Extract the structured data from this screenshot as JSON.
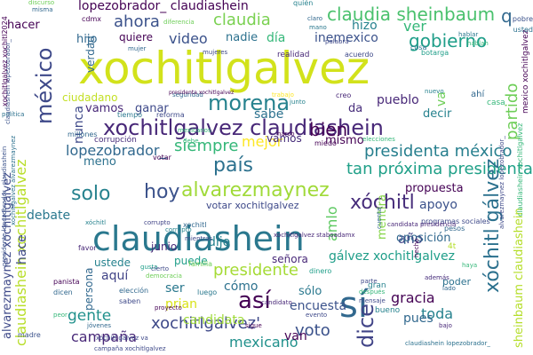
{
  "palette": {
    "background": "#ffffff",
    "colors": [
      "#440154",
      "#482878",
      "#3e4989",
      "#31688e",
      "#26828e",
      "#1f9e89",
      "#35b779",
      "#6ece58",
      "#b5de2b",
      "#fde725"
    ]
  },
  "words": [
    {
      "text": "xochitlgalvez",
      "color": "#d2e21b"
    },
    {
      "text": "claudiashein",
      "color": "#2a788e"
    },
    {
      "text": "sí",
      "color": "#31688e"
    },
    {
      "text": "xochitlgalvez claudiashein",
      "color": "#482878"
    },
    {
      "text": "méxico",
      "color": "#3e4989"
    },
    {
      "text": "morena",
      "color": "#26828e"
    },
    {
      "text": "así",
      "color": "#440154"
    },
    {
      "text": "hoy",
      "color": "#3b528b"
    },
    {
      "text": "alvarezmaynez",
      "color": "#a0da39"
    },
    {
      "text": "país",
      "color": "#2c718e"
    },
    {
      "text": "claudia sheinbaum",
      "color": "#4ac16d"
    },
    {
      "text": "solo",
      "color": "#26828e"
    },
    {
      "text": "claudia",
      "color": "#7ad151"
    },
    {
      "text": "gobierno",
      "color": "#1f9e89"
    },
    {
      "text": "xóchitl",
      "color": "#472d7b"
    },
    {
      "text": "xochitlgalvez'",
      "color": "#3e4989"
    },
    {
      "text": "presidente",
      "color": "#a5db36"
    },
    {
      "text": "ahora",
      "color": "#3b528b"
    },
    {
      "text": "bien",
      "color": "#440154"
    },
    {
      "text": "tan próxima presidenta",
      "color": "#1fa088"
    },
    {
      "text": "presidenta méxico",
      "color": "#277f8e"
    },
    {
      "text": "dice",
      "color": "#414487"
    },
    {
      "text": "voto",
      "color": "#3b528b"
    },
    {
      "text": "campaña",
      "color": "#482878"
    },
    {
      "text": "gente",
      "color": "#21918c"
    },
    {
      "text": "lopezobrador_ claudiashein",
      "color": "#440154"
    },
    {
      "text": "lopezobrador_",
      "color": "#31688e"
    },
    {
      "text": "mexicano",
      "color": "#21918c"
    },
    {
      "text": "claudiashein xochitlgalvez",
      "color": "#b8de29"
    },
    {
      "text": "xóchitl gálvez",
      "color": "#2c718e"
    },
    {
      "text": "partido",
      "color": "#6ece58"
    },
    {
      "text": "siempre",
      "color": "#35b779"
    },
    {
      "text": "mejor",
      "color": "#fde725"
    },
    {
      "text": "amlo",
      "color": "#5ec962"
    },
    {
      "text": "debate",
      "color": "#2a788e"
    },
    {
      "text": "video",
      "color": "#3b528b"
    },
    {
      "text": "sabe",
      "color": "#2c718e"
    },
    {
      "text": "pueblo",
      "color": "#482878"
    },
    {
      "text": "gracia",
      "color": "#440154"
    },
    {
      "text": "toda",
      "color": "#26828e"
    },
    {
      "text": "gálvez xochitlgalvez",
      "color": "#1f9e89"
    },
    {
      "text": "ver",
      "color": "#35b779"
    },
    {
      "text": "hacer",
      "color": "#440154"
    },
    {
      "text": "hace",
      "color": "#3e4989"
    },
    {
      "text": "aquí",
      "color": "#414487"
    },
    {
      "text": "ser",
      "color": "#2a788e"
    },
    {
      "text": "prian",
      "color": "#d8e219"
    },
    {
      "text": "hijo",
      "color": "#31688e"
    },
    {
      "text": "quiere",
      "color": "#440154"
    },
    {
      "text": "nadie",
      "color": "#2c718e"
    },
    {
      "text": "día",
      "color": "#35b779"
    },
    {
      "text": "inemexico",
      "color": "#3b528b"
    },
    {
      "text": "hizo",
      "color": "#26828e"
    },
    {
      "text": "verdad",
      "color": "#31688e"
    },
    {
      "text": "vamos",
      "color": "#482878"
    },
    {
      "text": "ganar",
      "color": "#3e4989"
    },
    {
      "text": "ciudadano",
      "color": "#c2df23"
    },
    {
      "text": "nunca",
      "color": "#3e4989"
    },
    {
      "text": "va",
      "color": "#6ece58"
    },
    {
      "text": "decir",
      "color": "#26828e"
    },
    {
      "text": "mismo",
      "color": "#440154"
    },
    {
      "text": "da",
      "color": "#472d7b"
    },
    {
      "text": "q",
      "color": "#31688e"
    },
    {
      "text": "año",
      "color": "#414487"
    },
    {
      "text": "apoyo",
      "color": "#3b528b"
    },
    {
      "text": "propuesta",
      "color": "#440154"
    },
    {
      "text": "oposición",
      "color": "#31688e"
    },
    {
      "text": "mentira",
      "color": "#86d549"
    },
    {
      "text": "meno",
      "color": "#2c718e"
    },
    {
      "text": "encuesta",
      "color": "#3b528b"
    },
    {
      "text": "pues",
      "color": "#31688e"
    },
    {
      "text": "cómo",
      "color": "#2c718e"
    },
    {
      "text": "candidata",
      "color": "#9fda3a"
    },
    {
      "text": "puede",
      "color": "#1f9e89"
    },
    {
      "text": "ustede",
      "color": "#26828e"
    },
    {
      "text": "persona",
      "color": "#31688e"
    },
    {
      "text": "junio",
      "color": "#482878"
    },
    {
      "text": "dijo",
      "color": "#26828e"
    },
    {
      "text": "van",
      "color": "#440154"
    },
    {
      "text": "votar xochitlgalvez",
      "color": "#3e4989"
    },
    {
      "text": "sólo",
      "color": "#2a788e"
    },
    {
      "text": "señora",
      "color": "#482878"
    },
    {
      "text": "alvarezmaynez xochitlgalvez",
      "color": "#3e4989"
    },
    {
      "text": "sheinbaum claudiashein",
      "color": "#b5de2b"
    },
    {
      "text": "claudiashein lopezobrador_",
      "color": "#3b528b"
    },
    {
      "text": "xochitlgalvez xochitl2024",
      "color": "#440154"
    },
    {
      "text": "mexico xochitlgalvez",
      "color": "#440154"
    },
    {
      "text": "presidente lopezobrador_ claudiashein",
      "color": "#3b528b"
    },
    {
      "text": "alvarezmaynez lopezobrador_",
      "color": "#3e4989"
    },
    {
      "text": "xochitlgalvez alvarezmaynez",
      "color": "#2c718e"
    },
    {
      "text": "claudiashein xochitlgalvez",
      "color": "#35b779"
    },
    {
      "text": "corrupción",
      "color": "#472d7b"
    },
    {
      "text": "vamos",
      "color": "#472d7b"
    },
    {
      "text": "tiempo",
      "color": "#2a788e"
    },
    {
      "text": "millones",
      "color": "#31688e"
    },
    {
      "text": "reforma",
      "color": "#3e4989"
    },
    {
      "text": "mexicanos",
      "color": "#35b779"
    },
    {
      "text": "votar",
      "color": "#440154"
    },
    {
      "text": "corrupto",
      "color": "#414487"
    },
    {
      "text": "programas sociales",
      "color": "#3e4989"
    },
    {
      "text": "candidata presidencia",
      "color": "#482878"
    },
    {
      "text": "pobre",
      "color": "#3b528b"
    },
    {
      "text": "usted",
      "color": "#2c718e"
    },
    {
      "text": "discurso",
      "color": "#6ece58"
    },
    {
      "text": "quién",
      "color": "#26828e"
    },
    {
      "text": "claro",
      "color": "#31688e"
    },
    {
      "text": "mano",
      "color": "#2a788e"
    },
    {
      "text": "cdmx",
      "color": "#440154"
    },
    {
      "text": "realidad",
      "color": "#482878"
    },
    {
      "text": "acuerdo",
      "color": "#3e4989"
    },
    {
      "text": "botarga",
      "color": "#1f9e89"
    },
    {
      "text": "ahí",
      "color": "#31688e"
    },
    {
      "text": "casa",
      "color": "#35b779"
    },
    {
      "text": "cosa",
      "color": "#2c718e"
    },
    {
      "text": "creo",
      "color": "#482878"
    },
    {
      "text": "nuevo",
      "color": "#26828e"
    },
    {
      "text": "trabajo",
      "color": "#fde725"
    },
    {
      "text": "mujeres",
      "color": "#3e4989"
    },
    {
      "text": "mujer",
      "color": "#31688e"
    },
    {
      "text": "junto",
      "color": "#26828e"
    },
    {
      "text": "miedo",
      "color": "#440154"
    },
    {
      "text": "elecciones",
      "color": "#35b779"
    },
    {
      "text": "favor",
      "color": "#482878"
    },
    {
      "text": "elección",
      "color": "#31688e"
    },
    {
      "text": "democracia",
      "color": "#6ece58"
    },
    {
      "text": "saben",
      "color": "#3e4989"
    },
    {
      "text": "jóvenes",
      "color": "#31688e"
    },
    {
      "text": "dinero",
      "color": "#1f9e89"
    },
    {
      "text": "proyecto",
      "color": "#440154"
    },
    {
      "text": "después",
      "color": "#35b779"
    },
    {
      "text": "mensaje",
      "color": "#3e4989"
    },
    {
      "text": "bueno",
      "color": "#26828e"
    },
    {
      "text": "además",
      "color": "#472d7b"
    },
    {
      "text": "lado",
      "color": "#31688e"
    },
    {
      "text": "gran",
      "color": "#26828e"
    },
    {
      "text": "poder",
      "color": "#2c718e"
    },
    {
      "text": "evento",
      "color": "#3e4989"
    },
    {
      "text": "candidato",
      "color": "#482878"
    },
    {
      "text": "sigue",
      "color": "#440154"
    },
    {
      "text": "madre",
      "color": "#3b528b"
    },
    {
      "text": "claudiashein lopezobrador_",
      "color": "#2c718e"
    },
    {
      "text": "campaña xochitlgalvez",
      "color": "#3e4989"
    },
    {
      "text": "peor",
      "color": "#35b779"
    },
    {
      "text": "dicen",
      "color": "#31688e"
    },
    {
      "text": "luego",
      "color": "#2a788e"
    },
    {
      "text": "gusta",
      "color": "#1f9e89"
    },
    {
      "text": "cierto",
      "color": "#3e4989"
    },
    {
      "text": "familia",
      "color": "#6ece58"
    },
    {
      "text": "panista",
      "color": "#440154"
    },
    {
      "text": "seguridad",
      "color": "#31688e"
    },
    {
      "text": "xochitl",
      "color": "#31688e"
    },
    {
      "text": "corrupto",
      "color": "#26828e"
    },
    {
      "text": "debe",
      "color": "#35b779"
    },
    {
      "text": "parte",
      "color": "#3e4989"
    },
    {
      "text": "4t",
      "color": "#b5de2b"
    },
    {
      "text": "xochitlgalvez staboadamx",
      "color": "#482878"
    },
    {
      "text": "política",
      "color": "#2c718e"
    },
    {
      "text": "narco",
      "color": "#440154"
    },
    {
      "text": "mientras",
      "color": "#3e4989"
    },
    {
      "text": "haya",
      "color": "#35b779"
    },
    {
      "text": "cuenta",
      "color": "#31688e"
    },
    {
      "text": "xóchitl",
      "color": "#26828e"
    },
    {
      "text": "hecho",
      "color": "#440154"
    },
    {
      "text": "diferencia",
      "color": "#6ece58"
    },
    {
      "text": "palabra",
      "color": "#3e4989"
    },
    {
      "text": "misma",
      "color": "#31688e"
    },
    {
      "text": "bajo",
      "color": "#482878"
    },
    {
      "text": "hablar",
      "color": "#2a788e"
    },
    {
      "text": "hablan",
      "color": "#35b779"
    },
    {
      "text": "xóchitl gálvez va",
      "color": "#3e4989"
    },
    {
      "text": "presidenta xochitlgalvez",
      "color": "#440154"
    },
    {
      "text": "pesos",
      "color": "#31688e"
    }
  ]
}
